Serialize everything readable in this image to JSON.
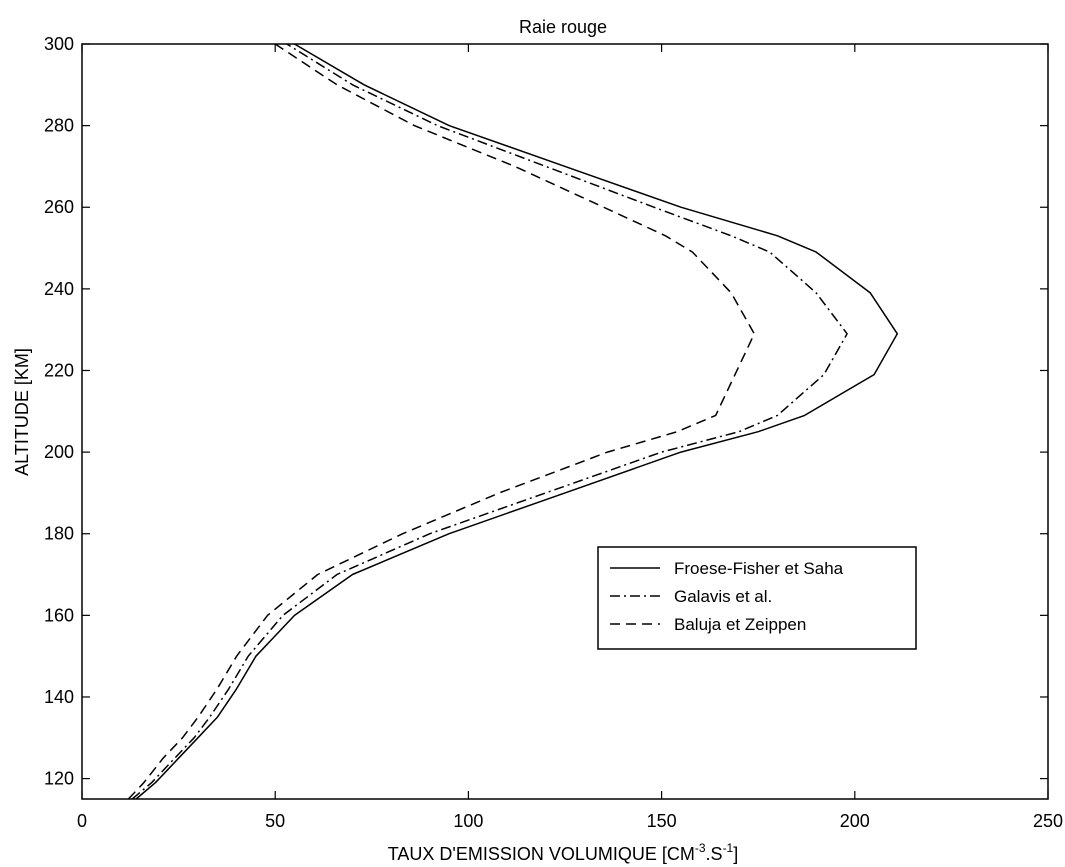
{
  "chart_data": {
    "type": "line",
    "title": "Raie rouge",
    "xlabel": {
      "prefix": "TAUX D'EMISSION VOLUMIQUE [CM",
      "sup1": "-3",
      "mid": ".S",
      "sup2": "-1",
      "suffix": "]"
    },
    "ylabel": "ALTITUDE [KM]",
    "xlim": [
      0,
      250
    ],
    "ylim": [
      115,
      300
    ],
    "xticks": [
      0,
      50,
      100,
      150,
      200,
      250
    ],
    "yticks": [
      120,
      140,
      160,
      180,
      200,
      220,
      240,
      260,
      280,
      300
    ],
    "grid": false,
    "legend_position": "center-right",
    "series": [
      {
        "name": "Froese-Fisher et Saha",
        "style": "solid",
        "color": "#000000",
        "x": [
          14,
          19,
          25,
          30,
          35,
          40,
          45,
          55,
          70,
          95,
          125,
          155,
          175,
          187,
          205,
          211,
          204,
          190,
          180,
          155,
          125,
          95,
          73,
          55
        ],
        "y": [
          115,
          119,
          125,
          130,
          135,
          142,
          150,
          160,
          170,
          180,
          190,
          200,
          205,
          209,
          219,
          229,
          239,
          249,
          253,
          260,
          270,
          280,
          290,
          300
        ]
      },
      {
        "name": "Galavis et al.",
        "style": "dashdot",
        "color": "#000000",
        "x": [
          13,
          18,
          24,
          29,
          33,
          38,
          43,
          52,
          66,
          90,
          120,
          150,
          170,
          180,
          192,
          198,
          190,
          178,
          168,
          148,
          120,
          92,
          70,
          53
        ],
        "y": [
          115,
          119,
          125,
          130,
          135,
          142,
          150,
          160,
          170,
          180,
          190,
          200,
          205,
          209,
          219,
          229,
          239,
          249,
          253,
          260,
          270,
          280,
          290,
          300
        ]
      },
      {
        "name": "Baluja et Zeippen",
        "style": "dashed",
        "color": "#000000",
        "x": [
          12,
          16,
          21,
          26,
          30,
          35,
          40,
          48,
          61,
          83,
          108,
          136,
          154,
          164,
          169,
          174,
          168,
          158,
          151,
          135,
          112,
          86,
          66,
          50
        ],
        "y": [
          115,
          119,
          125,
          130,
          135,
          142,
          150,
          160,
          170,
          180,
          190,
          200,
          205,
          209,
          219,
          229,
          239,
          249,
          253,
          260,
          270,
          280,
          290,
          300
        ]
      }
    ]
  }
}
